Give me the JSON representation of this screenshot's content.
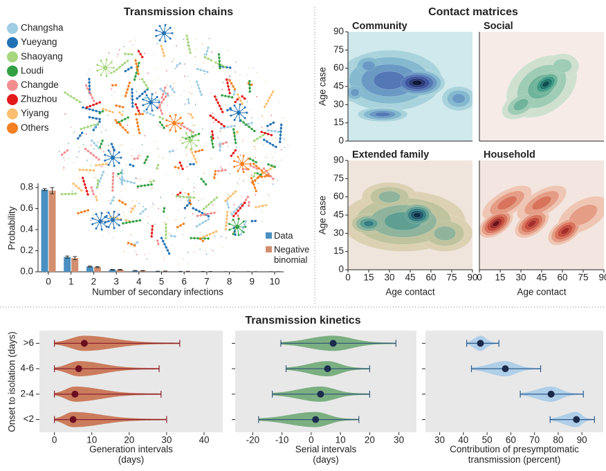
{
  "chart_data": [
    {
      "type": "network",
      "title": "Transmission chains",
      "series": [
        {
          "name": "Changsha",
          "color": "#9fcde3"
        },
        {
          "name": "Yueyang",
          "color": "#2171b5"
        },
        {
          "name": "Shaoyang",
          "color": "#a6d67e"
        },
        {
          "name": "Loudi",
          "color": "#33a043"
        },
        {
          "name": "Changde",
          "color": "#f28e8e"
        },
        {
          "name": "Zhuzhou",
          "color": "#e31a1c"
        },
        {
          "name": "Yiyang",
          "color": "#fdbf6f"
        },
        {
          "name": "Others",
          "color": "#f47f20"
        }
      ]
    },
    {
      "type": "bar",
      "xlabel": "Number of secondary infections",
      "ylabel": "Probability",
      "categories": [
        "0",
        "1",
        "2",
        "3",
        "4",
        "5",
        "6",
        "7",
        "8",
        "9",
        "10"
      ],
      "series": [
        {
          "name": "Data",
          "color": "#4a8fc1",
          "values": [
            0.78,
            0.14,
            0.05,
            0.02,
            0.01,
            0.005,
            0.003,
            0.002,
            0.001,
            0.001,
            0.001
          ],
          "errors": [
            0.01,
            0.01,
            0.005,
            0.003,
            0.002,
            0.001,
            0.001,
            0.001,
            0.001,
            0.001,
            0.001
          ]
        },
        {
          "name": "Negative binomial",
          "color": "#d28e6f",
          "values": [
            0.77,
            0.13,
            0.045,
            0.02,
            0.01,
            0.006,
            0.004,
            0.002,
            0.001,
            0.001,
            0.001
          ],
          "errors": [
            0.03,
            0.015,
            0.005,
            0.003,
            0.002,
            0.001,
            0.001,
            0.001,
            0.001,
            0.001,
            0.001
          ]
        }
      ],
      "ylim": [
        0,
        0.84
      ],
      "yticks": [
        {
          "value": 0,
          "label": "0.0"
        },
        0.2,
        0.4,
        0.6,
        0.8
      ]
    },
    {
      "type": "density",
      "title": "Contact matrices",
      "xlabel": "Age contact",
      "ylabel": "Age case",
      "xlim": [
        0,
        90
      ],
      "ylim": [
        0,
        90
      ],
      "xticks": [
        0,
        15,
        30,
        45,
        60,
        75,
        90
      ],
      "yticks": [
        0,
        15,
        30,
        45,
        60,
        75,
        90
      ],
      "panels": [
        {
          "title": "Community",
          "colors": [
            "#cfe9ed",
            "#a9d3dc",
            "#84b9cf",
            "#6a9ac4",
            "#5477b6",
            "#3e55a0",
            "#2a3a7a",
            "#0e1838"
          ]
        },
        {
          "title": "Social",
          "colors": [
            "#f6ebe7",
            "#cfe0cf",
            "#9fccb4",
            "#6fb39a",
            "#3f9a85",
            "#1f7a6f",
            "#0f5050"
          ]
        },
        {
          "title": "Extended family",
          "colors": [
            "#efe5dc",
            "#dcd1b3",
            "#bfc39e",
            "#8fb39b",
            "#5f9f92",
            "#357f83",
            "#1e5a6a",
            "#0f2f48"
          ]
        },
        {
          "title": "Household",
          "colors": [
            "#f3e5df",
            "#efc5b3",
            "#e59d85",
            "#d8735c",
            "#c54c3c",
            "#a52e2a",
            "#6e1217"
          ]
        }
      ]
    },
    {
      "type": "violin",
      "title": "Transmission kinetics",
      "ylabel": "Onset to isolation (days)",
      "categories": [
        ">6",
        "4-6",
        "2-4",
        "<2"
      ],
      "panels": [
        {
          "xlabel": "Generation intervals (days)",
          "xlim": [
            -4,
            45
          ],
          "xticks": [
            0,
            10,
            20,
            30,
            40
          ],
          "fill": "#c8704e",
          "line": "#8b2032",
          "point": "#6b0f1f",
          "median": [
            8,
            6.5,
            5.5,
            5
          ],
          "low": [
            0,
            0,
            0,
            0
          ],
          "high": [
            33.5,
            28,
            28.5,
            30
          ]
        },
        {
          "xlabel": "Serial intervals (days)",
          "xlim": [
            -26,
            36
          ],
          "xticks": [
            -20,
            -10,
            0,
            10,
            20,
            30
          ],
          "fill": "#6fa876",
          "line": "#345a7a",
          "point": "#1b2d4f",
          "median": [
            7.5,
            5.6,
            3.2,
            1.5
          ],
          "low": [
            -10.4,
            -8.6,
            -13.3,
            -18
          ],
          "high": [
            29,
            20,
            20,
            16.3
          ]
        },
        {
          "xlabel": "Contribution of presymptomatic transmission (percent)",
          "xlim": [
            24,
            99
          ],
          "xticks": [
            30,
            40,
            50,
            60,
            70,
            80,
            90
          ],
          "fill": "#a8cbe8",
          "line": "#2f5b8a",
          "point": "#1b2a4a",
          "median": [
            47.2,
            57.7,
            77,
            87.7
          ],
          "low": [
            41.4,
            43.4,
            64,
            76.6
          ],
          "high": [
            55,
            72.6,
            90.6,
            95.3
          ]
        }
      ]
    }
  ]
}
